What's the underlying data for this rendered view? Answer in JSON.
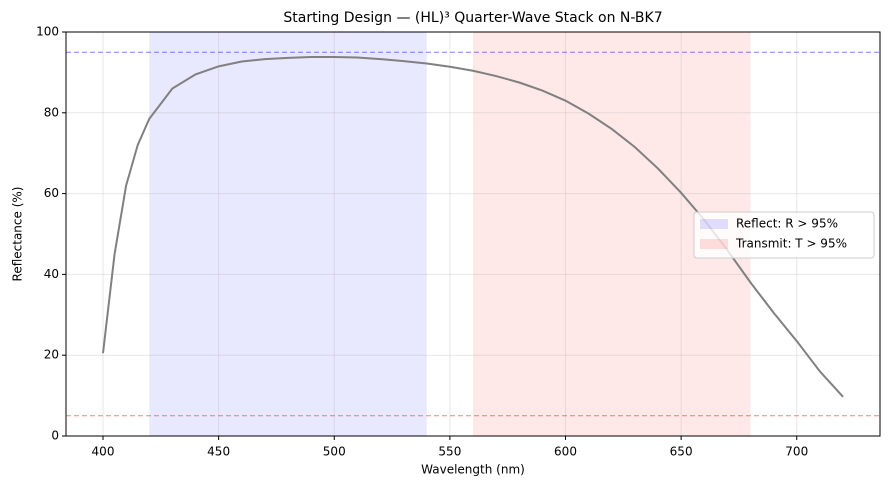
{
  "chart_data": {
    "type": "line",
    "title": "Starting Design — (HL)³ Quarter-Wave Stack on N-BK7",
    "x_label": "Wavelength (nm)",
    "y_label": "Reflectance (%)",
    "x": [
      400,
      405,
      410,
      415,
      420,
      430,
      440,
      450,
      460,
      470,
      480,
      490,
      500,
      510,
      520,
      530,
      540,
      550,
      560,
      570,
      580,
      590,
      600,
      610,
      620,
      630,
      640,
      650,
      660,
      670,
      680,
      690,
      700,
      710,
      720
    ],
    "series": [
      {
        "color": "#808080",
        "values": [
          20.5,
          45,
          62,
          72,
          78.5,
          86,
          89.5,
          91.5,
          92.7,
          93.3,
          93.6,
          93.8,
          93.8,
          93.7,
          93.3,
          92.8,
          92.2,
          91.4,
          90.4,
          89.1,
          87.5,
          85.5,
          83,
          79.8,
          76,
          71.5,
          66.2,
          60.2,
          53.5,
          46,
          38,
          30.5,
          23.5,
          16,
          9.7
        ]
      }
    ],
    "bands": [
      {
        "name": "Reflect: R > 95%",
        "color": "#0000ff",
        "x": [
          420,
          540
        ]
      },
      {
        "name": "Transmit: T > 95%",
        "color": "#ff0000",
        "x": [
          560,
          680
        ]
      }
    ],
    "thresholds": [
      {
        "value": 95,
        "color": "#0000ff"
      },
      {
        "value": 5,
        "color": "#ff0000"
      }
    ],
    "xlim": [
      384,
      736
    ],
    "ylim": [
      0,
      100
    ],
    "xticks": [
      400,
      450,
      500,
      550,
      600,
      650,
      700
    ],
    "yticks": [
      0,
      20,
      40,
      60,
      80,
      100
    ],
    "grid": true,
    "legend": "center right"
  }
}
